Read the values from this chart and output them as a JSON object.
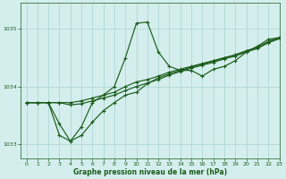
{
  "xlabel": "Graphe pression niveau de la mer (hPa)",
  "bg_color": "#d4eeed",
  "grid_color": "#a8d4d0",
  "line_color": "#1a5c1a",
  "marker": "+",
  "xlim": [
    -0.5,
    23
  ],
  "ylim": [
    1032.75,
    1035.45
  ],
  "yticks": [
    1033,
    1034,
    1035
  ],
  "xticks": [
    0,
    1,
    2,
    3,
    4,
    5,
    6,
    7,
    8,
    9,
    10,
    11,
    12,
    13,
    14,
    15,
    16,
    17,
    18,
    19,
    20,
    21,
    22,
    23
  ],
  "line1_x": [
    0,
    1,
    2,
    3,
    4,
    5,
    6,
    7,
    8,
    9,
    10,
    11,
    12,
    13,
    14,
    15,
    16,
    17,
    18,
    19,
    20,
    21,
    22,
    23
  ],
  "line1": [
    1033.72,
    1033.72,
    1033.72,
    1033.35,
    1033.05,
    1033.3,
    1033.72,
    1033.85,
    1034.0,
    1034.5,
    1035.1,
    1035.12,
    1034.6,
    1034.35,
    1034.28,
    1034.28,
    1034.18,
    1034.3,
    1034.35,
    1034.45,
    1034.6,
    1034.7,
    1034.82,
    1034.85
  ],
  "line2_x": [
    0,
    1,
    2,
    3,
    4,
    5,
    6,
    7,
    8,
    9,
    10,
    11,
    12,
    13,
    14,
    15,
    16,
    17,
    18,
    19,
    20,
    21,
    22,
    23
  ],
  "line2": [
    1033.72,
    1033.72,
    1033.72,
    1033.72,
    1033.72,
    1033.75,
    1033.8,
    1033.85,
    1033.9,
    1034.0,
    1034.08,
    1034.12,
    1034.18,
    1034.25,
    1034.3,
    1034.35,
    1034.4,
    1034.45,
    1034.5,
    1034.55,
    1034.62,
    1034.68,
    1034.78,
    1034.85
  ],
  "line3_x": [
    0,
    1,
    2,
    3,
    4,
    5,
    6,
    7,
    8,
    9,
    10,
    11,
    12,
    13,
    14,
    15,
    16,
    17,
    18,
    19,
    20,
    21,
    22,
    23
  ],
  "line3": [
    1033.72,
    1033.72,
    1033.72,
    1033.72,
    1033.68,
    1033.7,
    1033.75,
    1033.8,
    1033.85,
    1033.93,
    1034.0,
    1034.06,
    1034.12,
    1034.2,
    1034.26,
    1034.32,
    1034.37,
    1034.42,
    1034.48,
    1034.53,
    1034.6,
    1034.66,
    1034.76,
    1034.83
  ],
  "line4_x": [
    0,
    1,
    2,
    3,
    4,
    5,
    6,
    7,
    8,
    9,
    10,
    11,
    12,
    13,
    14,
    15,
    16,
    17,
    18,
    19,
    20,
    21,
    22,
    23
  ],
  "line4": [
    1033.72,
    1033.72,
    1033.72,
    1033.15,
    1033.05,
    1033.15,
    1033.38,
    1033.58,
    1033.72,
    1033.85,
    1033.9,
    1034.05,
    1034.15,
    1034.22,
    1034.28,
    1034.34,
    1034.39,
    1034.44,
    1034.5,
    1034.55,
    1034.62,
    1034.68,
    1034.78,
    1034.85
  ]
}
